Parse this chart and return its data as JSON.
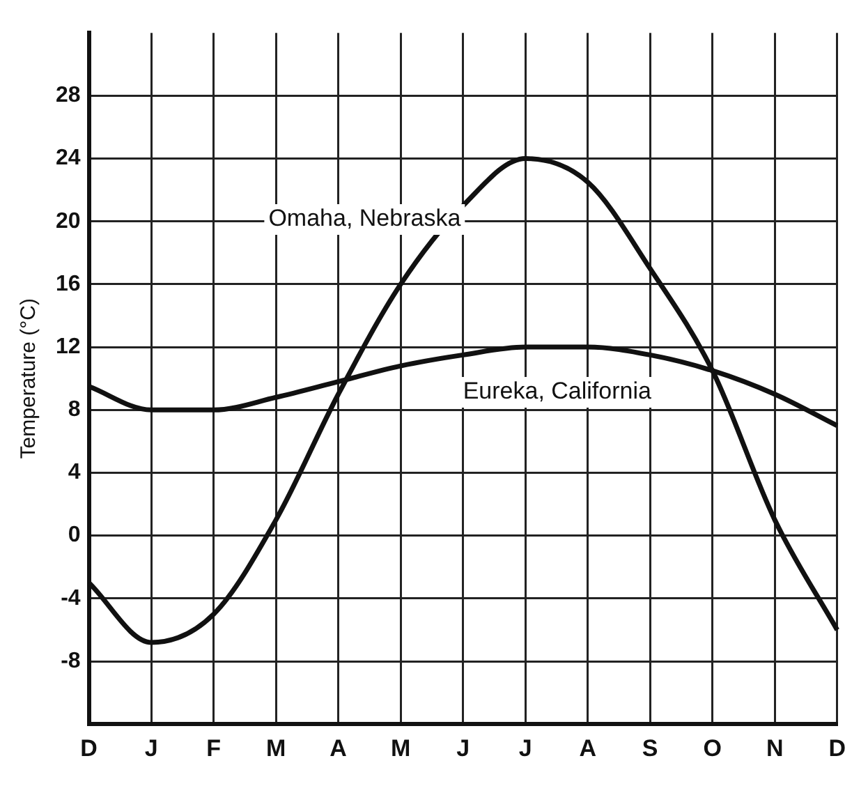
{
  "chart_data": {
    "type": "line",
    "ylabel": "Temperature (°C)",
    "categories": [
      "D",
      "J",
      "F",
      "M",
      "A",
      "M",
      "J",
      "J",
      "A",
      "S",
      "O",
      "N",
      "D"
    ],
    "series": [
      {
        "name": "Omaha, Nebraska",
        "color": "#111111",
        "values": [
          -3,
          -6.8,
          -5,
          1,
          9,
          16,
          21,
          24,
          22.5,
          17,
          10.5,
          1,
          -6
        ]
      },
      {
        "name": "Eureka, California",
        "color": "#111111",
        "values": [
          9.5,
          8,
          8,
          8.8,
          9.8,
          10.8,
          11.5,
          12,
          12,
          11.5,
          10.5,
          9,
          7
        ]
      }
    ],
    "ylim": [
      -12,
      32
    ],
    "yticks": [
      -8,
      -4,
      0,
      4,
      8,
      12,
      16,
      20,
      24,
      28
    ],
    "grid": true,
    "legend": false,
    "marker": "none",
    "line_style": "solid"
  }
}
